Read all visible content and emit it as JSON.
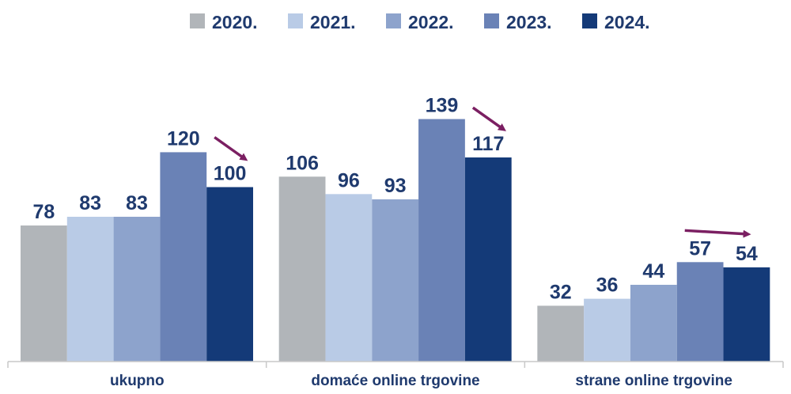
{
  "chart_data": {
    "type": "bar",
    "categories": [
      "ukupno",
      "domaće online trgovine",
      "strane online trgovine"
    ],
    "series": [
      {
        "name": "2020.",
        "color": "#b1b5b9",
        "values": [
          78,
          106,
          32
        ]
      },
      {
        "name": "2021.",
        "color": "#b9cbe6",
        "values": [
          83,
          96,
          36
        ]
      },
      {
        "name": "2022.",
        "color": "#8da3cc",
        "values": [
          83,
          93,
          44
        ]
      },
      {
        "name": "2023.",
        "color": "#6a82b6",
        "values": [
          120,
          139,
          57
        ]
      },
      {
        "name": "2024.",
        "color": "#143a78",
        "values": [
          100,
          117,
          54
        ]
      }
    ],
    "ylim": [
      0,
      170
    ],
    "legend_position": "top",
    "grid": false,
    "annotations": [
      {
        "type": "arrow",
        "category": "ukupno",
        "direction": "down",
        "color": "#7b1f62"
      },
      {
        "type": "arrow",
        "category": "domaće online trgovine",
        "direction": "down",
        "color": "#7b1f62"
      },
      {
        "type": "arrow",
        "category": "strane online trgovine",
        "direction": "down",
        "color": "#7b1f62"
      }
    ]
  }
}
